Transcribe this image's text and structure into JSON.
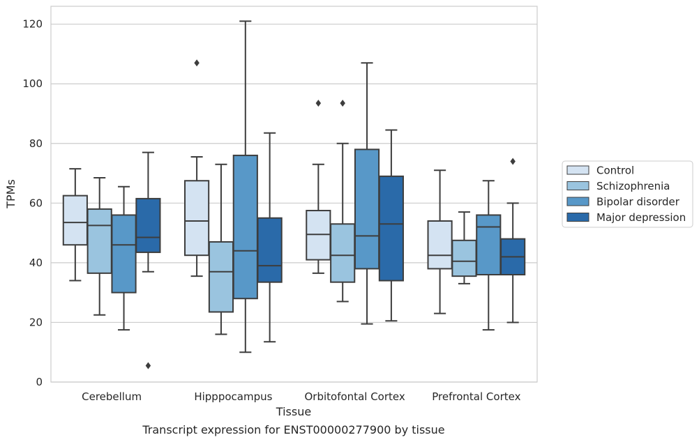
{
  "chart_data": {
    "type": "box",
    "title": "",
    "caption": "Transcript expression for ENST00000277900 by tissue",
    "xlabel": "Tissue",
    "ylabel": "TPMs",
    "ylim": [
      0,
      126
    ],
    "yticks": [
      0,
      20,
      40,
      60,
      80,
      100,
      120
    ],
    "grid": "horizontal",
    "legend_position": "right",
    "categories": [
      "Cerebellum",
      "Hipppocampus",
      "Orbitofontal Cortex",
      "Prefrontal Cortex"
    ],
    "series": [
      {
        "name": "Control",
        "color": "#d4e3f2",
        "boxes": [
          {
            "q1": 46,
            "median": 53.5,
            "q3": 62.5,
            "whisker_low": 34,
            "whisker_high": 71.5,
            "outliers": []
          },
          {
            "q1": 42.5,
            "median": 54,
            "q3": 67.5,
            "whisker_low": 35.5,
            "whisker_high": 75.5,
            "outliers": [
              107
            ]
          },
          {
            "q1": 41,
            "median": 49.5,
            "q3": 57.5,
            "whisker_low": 36.5,
            "whisker_high": 73,
            "outliers": [
              93.5
            ]
          },
          {
            "q1": 38,
            "median": 42.5,
            "q3": 54,
            "whisker_low": 23,
            "whisker_high": 71,
            "outliers": []
          }
        ]
      },
      {
        "name": "Schizophrenia",
        "color": "#9ac4df",
        "boxes": [
          {
            "q1": 36.5,
            "median": 52.5,
            "q3": 58,
            "whisker_low": 22.5,
            "whisker_high": 68.5,
            "outliers": []
          },
          {
            "q1": 23.5,
            "median": 37,
            "q3": 47,
            "whisker_low": 16,
            "whisker_high": 73,
            "outliers": []
          },
          {
            "q1": 33.5,
            "median": 42.5,
            "q3": 53,
            "whisker_low": 27,
            "whisker_high": 80,
            "outliers": [
              93.5
            ]
          },
          {
            "q1": 35.5,
            "median": 40.5,
            "q3": 47.5,
            "whisker_low": 33,
            "whisker_high": 57,
            "outliers": []
          }
        ]
      },
      {
        "name": "Bipolar disorder",
        "color": "#5898c8",
        "boxes": [
          {
            "q1": 30,
            "median": 46,
            "q3": 56,
            "whisker_low": 17.5,
            "whisker_high": 65.5,
            "outliers": []
          },
          {
            "q1": 28,
            "median": 44,
            "q3": 76,
            "whisker_low": 10,
            "whisker_high": 121,
            "outliers": []
          },
          {
            "q1": 38,
            "median": 49,
            "q3": 78,
            "whisker_low": 19.5,
            "whisker_high": 107,
            "outliers": []
          },
          {
            "q1": 36,
            "median": 52,
            "q3": 56,
            "whisker_low": 17.5,
            "whisker_high": 67.5,
            "outliers": []
          }
        ]
      },
      {
        "name": "Major depression",
        "color": "#2a6aa9",
        "boxes": [
          {
            "q1": 43.5,
            "median": 48.5,
            "q3": 61.5,
            "whisker_low": 37,
            "whisker_high": 77,
            "outliers": [
              5.5
            ]
          },
          {
            "q1": 33.5,
            "median": 39,
            "q3": 55,
            "whisker_low": 13.5,
            "whisker_high": 83.5,
            "outliers": []
          },
          {
            "q1": 34,
            "median": 53,
            "q3": 69,
            "whisker_low": 20.5,
            "whisker_high": 84.5,
            "outliers": []
          },
          {
            "q1": 36,
            "median": 42,
            "q3": 48,
            "whisker_low": 20,
            "whisker_high": 60,
            "outliers": [
              74
            ]
          }
        ]
      }
    ]
  }
}
